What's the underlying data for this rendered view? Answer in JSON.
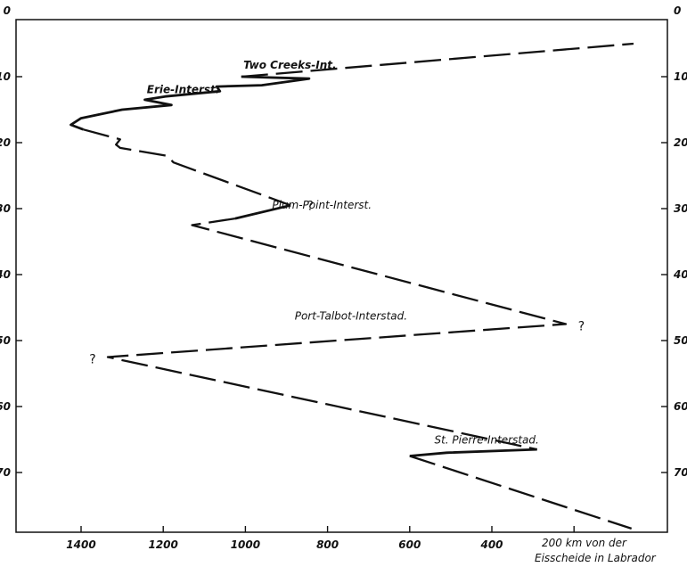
{
  "chart_data": {
    "type": "line",
    "title": "",
    "xlabel": "km von der Eisscheide in Labrador",
    "xlabel_lines": [
      "200 km von der",
      "Eisscheide in Labrador"
    ],
    "ylabel": "",
    "x_axis_direction": "reversed",
    "y_axis_direction": "downward",
    "xlim": [
      1540,
      50
    ],
    "ylim": [
      0,
      80
    ],
    "x_ticks": [
      "1400",
      "1200",
      "1000",
      "800",
      "600",
      "400"
    ],
    "y_ticks_left": [
      "0",
      "10",
      "20",
      "30",
      "40",
      "50",
      "60",
      "70"
    ],
    "y_ticks_right": [
      "0",
      "10",
      "20",
      "30",
      "40",
      "50",
      "60",
      "70"
    ],
    "grid": false,
    "series": [
      {
        "style": "solid",
        "points": [
          {
            "x": 1010,
            "y": 10.0
          },
          {
            "x": 845,
            "y": 10.3
          },
          {
            "x": 960,
            "y": 11.3
          },
          {
            "x": 1070,
            "y": 11.5
          },
          {
            "x": 1062,
            "y": 12.2
          },
          {
            "x": 1195,
            "y": 13.0
          },
          {
            "x": 1245,
            "y": 13.5
          },
          {
            "x": 1180,
            "y": 14.3
          },
          {
            "x": 1300,
            "y": 15.0
          },
          {
            "x": 1400,
            "y": 16.3
          },
          {
            "x": 1425,
            "y": 17.3
          },
          {
            "x": 1395,
            "y": 18.0
          }
        ]
      },
      {
        "style": "dashed",
        "points": [
          {
            "x": 1010,
            "y": 10.0
          },
          {
            "x": 55,
            "y": 5.0
          }
        ]
      },
      {
        "style": "dashed",
        "points": [
          {
            "x": 1395,
            "y": 18.0
          },
          {
            "x": 1305,
            "y": 19.5
          },
          {
            "x": 1315,
            "y": 20.3
          },
          {
            "x": 1305,
            "y": 20.8
          },
          {
            "x": 1190,
            "y": 22.0
          },
          {
            "x": 1175,
            "y": 23.0
          },
          {
            "x": 890,
            "y": 29.5
          }
        ]
      },
      {
        "style": "solid",
        "points": [
          {
            "x": 890,
            "y": 29.5
          },
          {
            "x": 1025,
            "y": 31.5
          }
        ]
      },
      {
        "style": "dashed",
        "points": [
          {
            "x": 1025,
            "y": 31.5
          },
          {
            "x": 1130,
            "y": 32.5
          },
          {
            "x": 220,
            "y": 47.5
          },
          {
            "x": 1335,
            "y": 52.5
          },
          {
            "x": 290,
            "y": 66.5
          }
        ]
      },
      {
        "style": "solid",
        "points": [
          {
            "x": 290,
            "y": 66.5
          },
          {
            "x": 510,
            "y": 67.0
          },
          {
            "x": 600,
            "y": 67.5
          }
        ]
      },
      {
        "style": "dashed",
        "points": [
          {
            "x": 600,
            "y": 67.5
          },
          {
            "x": 60,
            "y": 78.5
          }
        ]
      }
    ],
    "annotations": [
      {
        "text": "Two Creeks-Int.",
        "x": 1005,
        "y": 8.8
      },
      {
        "text": "Erie-Interst.",
        "x": 1240,
        "y": 12.5
      },
      {
        "text": "Plum-Point-Interst.",
        "x": 935,
        "y": 30.0
      },
      {
        "text": "Port-Talbot-Interstad.",
        "x": 880,
        "y": 46.8
      },
      {
        "text": "St. Pierre-Interstad.",
        "x": 540,
        "y": 65.6
      }
    ],
    "uncertain_marks": [
      {
        "text": "?",
        "x": 850,
        "y": 29.5
      },
      {
        "text": "?",
        "x": 190,
        "y": 47.8
      },
      {
        "text": "?",
        "x": 1380,
        "y": 52.8
      }
    ]
  }
}
